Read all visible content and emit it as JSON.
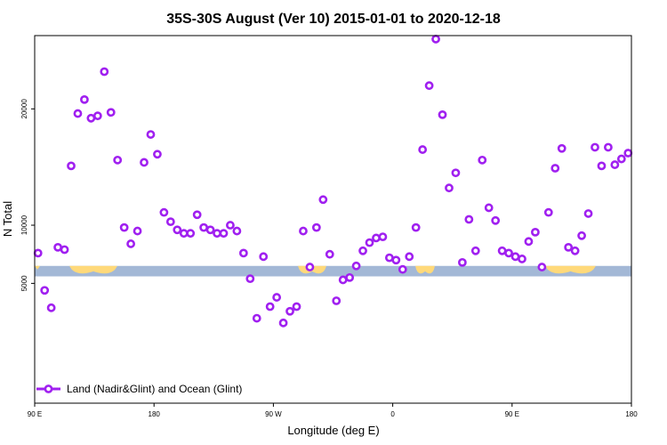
{
  "chart_data": {
    "type": "scatter",
    "title": "35S-30S August (Ver 10)   2015-01-01 to 2020-12-18",
    "xlabel": "Longitude (deg E)",
    "ylabel": "N Total",
    "xlim": [
      90,
      540
    ],
    "ylim": [
      -5300,
      26300
    ],
    "x_ticks": [
      {
        "value": 90,
        "label": "90 E"
      },
      {
        "value": 180,
        "label": "180"
      },
      {
        "value": 270,
        "label": "90 W"
      },
      {
        "value": 360,
        "label": "0"
      },
      {
        "value": 450,
        "label": "90 E"
      },
      {
        "value": 540,
        "label": "180"
      }
    ],
    "y_ticks": [
      {
        "value": 5000,
        "label": "5000"
      },
      {
        "value": 10000,
        "label": "10000"
      },
      {
        "value": 20000,
        "label": "20000"
      }
    ],
    "land_band": {
      "y_min": 5600,
      "y_max": 6500
    },
    "marker_color": "#a020f0",
    "ocean_color": "#a3b8d6",
    "land_color": "#ffd97a",
    "legend": {
      "position": "bottom-left",
      "label": "Land (Nadir&Glint) and Ocean (Glint)"
    },
    "series": [
      {
        "name": "Land (Nadir&Glint) and Ocean (Glint)",
        "x": [
          92.5,
          97.5,
          102.5,
          107.5,
          112.5,
          117.5,
          122.5,
          127.5,
          132.5,
          137.5,
          142.5,
          147.5,
          152.5,
          157.5,
          162.5,
          167.5,
          172.5,
          177.5,
          182.5,
          187.5,
          192.5,
          197.5,
          202.5,
          207.5,
          212.5,
          217.5,
          222.5,
          227.5,
          232.5,
          237.5,
          242.5,
          247.5,
          252.5,
          257.5,
          262.5,
          267.5,
          272.5,
          277.5,
          282.5,
          287.5,
          292.5,
          297.5,
          302.5,
          307.5,
          312.5,
          317.5,
          322.5,
          327.5,
          332.5,
          337.5,
          342.5,
          347.5,
          352.5,
          357.5,
          362.5,
          367.5,
          372.5,
          377.5,
          382.5,
          387.5,
          392.5,
          397.5,
          402.5,
          407.5,
          412.5,
          417.5,
          422.5,
          427.5,
          432.5,
          437.5,
          442.5,
          447.5,
          452.5,
          457.5,
          462.5,
          467.5,
          472.5,
          477.5,
          482.5,
          487.5,
          492.5,
          497.5,
          502.5,
          507.5,
          512.5,
          517.5,
          522.5,
          527.5,
          532.5,
          537.5
        ],
        "y": [
          7600,
          4400,
          2900,
          8100,
          7900,
          15100,
          19600,
          20800,
          19200,
          19400,
          23200,
          19700,
          15600,
          9800,
          8400,
          9500,
          15400,
          17800,
          16100,
          11100,
          10300,
          9600,
          9300,
          9300,
          10900,
          9800,
          9600,
          9300,
          9300,
          10000,
          9500,
          7600,
          5400,
          2000,
          7300,
          3000,
          3800,
          1600,
          2600,
          3000,
          9500,
          6400,
          9800,
          12200,
          7500,
          3500,
          5300,
          5500,
          6500,
          7800,
          8500,
          8900,
          9000,
          7200,
          7000,
          6200,
          7300,
          9800,
          16500,
          22000,
          26000,
          19500,
          13200,
          14500,
          6800,
          10500,
          7800,
          15600,
          11500,
          10400,
          7800,
          7600,
          7300,
          7100,
          8600,
          9400,
          6400,
          11100,
          14900,
          16600,
          8100,
          7800,
          9100,
          11000,
          16700,
          15100,
          16700,
          15200,
          15700,
          16200
        ]
      }
    ]
  }
}
